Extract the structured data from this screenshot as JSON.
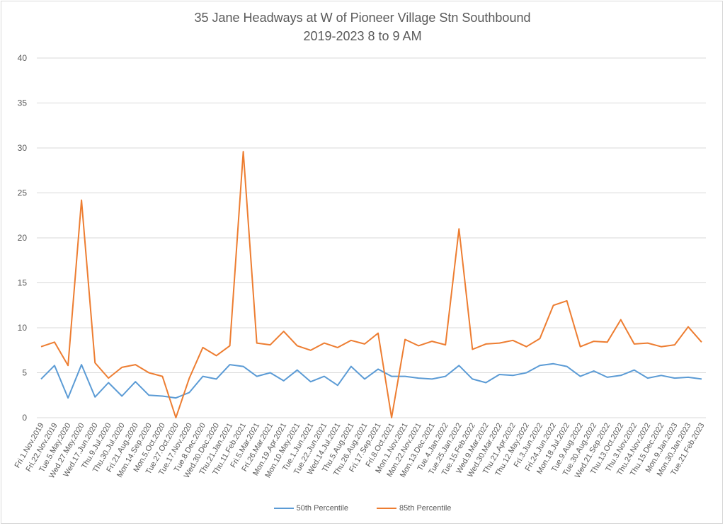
{
  "chart_data": {
    "type": "line",
    "title": "35 Jane Headways at W of Pioneer Village Stn Southbound",
    "subtitle": "2019-2023 8 to 9 AM",
    "xlabel": "",
    "ylabel": "",
    "ylim": [
      0,
      40
    ],
    "yticks": [
      0,
      5,
      10,
      15,
      20,
      25,
      30,
      35,
      40
    ],
    "grid": true,
    "legend_position": "bottom",
    "categories": [
      "Fri.1.Nov.2019",
      "Fri.22.Nov.2019",
      "Tue.5.May.2020",
      "Wed.27.May.2020",
      "Wed.17.Jun.2020",
      "Thu.9.Jul.2020",
      "Thu.30.Jul.2020",
      "Fri.21.Aug.2020",
      "Mon.14.Sep.2020",
      "Mon.5.Oct.2020",
      "Tue.27.Oct.2020",
      "Tue.17.Nov.2020",
      "Tue.8.Dec.2020",
      "Wed.30.Dec.2020",
      "Thu.21.Jan.2021",
      "Thu.11.Feb.2021",
      "Fri.5.Mar.2021",
      "Fri.26.Mar.2021",
      "Mon.19.Apr.2021",
      "Mon.10.May.2021",
      "Tue.1.Jun.2021",
      "Tue.22.Jun.2021",
      "Wed.14.Jul.2021",
      "Thu.5.Aug.2021",
      "Thu.26.Aug.2021",
      "Fri.17.Sep.2021",
      "Fri.8.Oct.2021",
      "Mon.1.Nov.2021",
      "Mon.22.Nov.2021",
      "Mon.13.Dec.2021",
      "Tue.4.Jan.2022",
      "Tue.25.Jan.2022",
      "Tue.15.Feb.2022",
      "Wed.9.Mar.2022",
      "Wed.30.Mar.2022",
      "Thu.21.Apr.2022",
      "Thu.12.May.2022",
      "Fri.3.Jun.2022",
      "Fri.24.Jun.2022",
      "Mon.18.Jul.2022",
      "Tue.9.Aug.2022",
      "Tue.30.Aug.2022",
      "Wed.21.Sep.2022",
      "Thu.13.Oct.2022",
      "Thu.3.Nov.2022",
      "Thu.24.Nov.2022",
      "Thu.15.Dec.2022",
      "Mon.9.Jan.2023",
      "Mon.30.Jan.2023",
      "Tue.21.Feb.2023"
    ],
    "series": [
      {
        "name": "50th Percentile",
        "color": "#5b9bd5",
        "values": [
          4.3,
          5.8,
          2.2,
          5.9,
          2.3,
          3.9,
          2.4,
          4.0,
          2.5,
          2.4,
          2.2,
          2.8,
          4.6,
          4.3,
          5.9,
          5.7,
          4.6,
          5.0,
          4.1,
          5.3,
          4.0,
          4.6,
          3.6,
          5.7,
          4.3,
          5.4,
          4.6,
          4.6,
          4.4,
          4.3,
          4.6,
          5.8,
          4.3,
          3.9,
          4.8,
          4.7,
          5.0,
          5.8,
          6.0,
          5.7,
          4.6,
          5.2,
          4.5,
          4.7,
          5.3,
          4.4,
          4.7,
          4.4,
          4.5,
          4.3
        ]
      },
      {
        "name": "85th Percentile",
        "color": "#ed7d31",
        "values": [
          7.9,
          8.4,
          5.8,
          24.2,
          6.1,
          4.4,
          5.6,
          5.9,
          5.0,
          4.6,
          0,
          4.4,
          7.8,
          6.9,
          8.0,
          29.6,
          8.3,
          8.1,
          9.6,
          8.0,
          7.5,
          8.3,
          7.8,
          8.6,
          8.2,
          9.4,
          0,
          8.7,
          8.0,
          8.5,
          8.1,
          21.0,
          7.6,
          8.2,
          8.3,
          8.6,
          7.9,
          8.8,
          12.5,
          13.0,
          7.9,
          8.5,
          8.4,
          10.9,
          8.2,
          8.3,
          7.9,
          8.1,
          10.1,
          8.4
        ]
      }
    ]
  }
}
